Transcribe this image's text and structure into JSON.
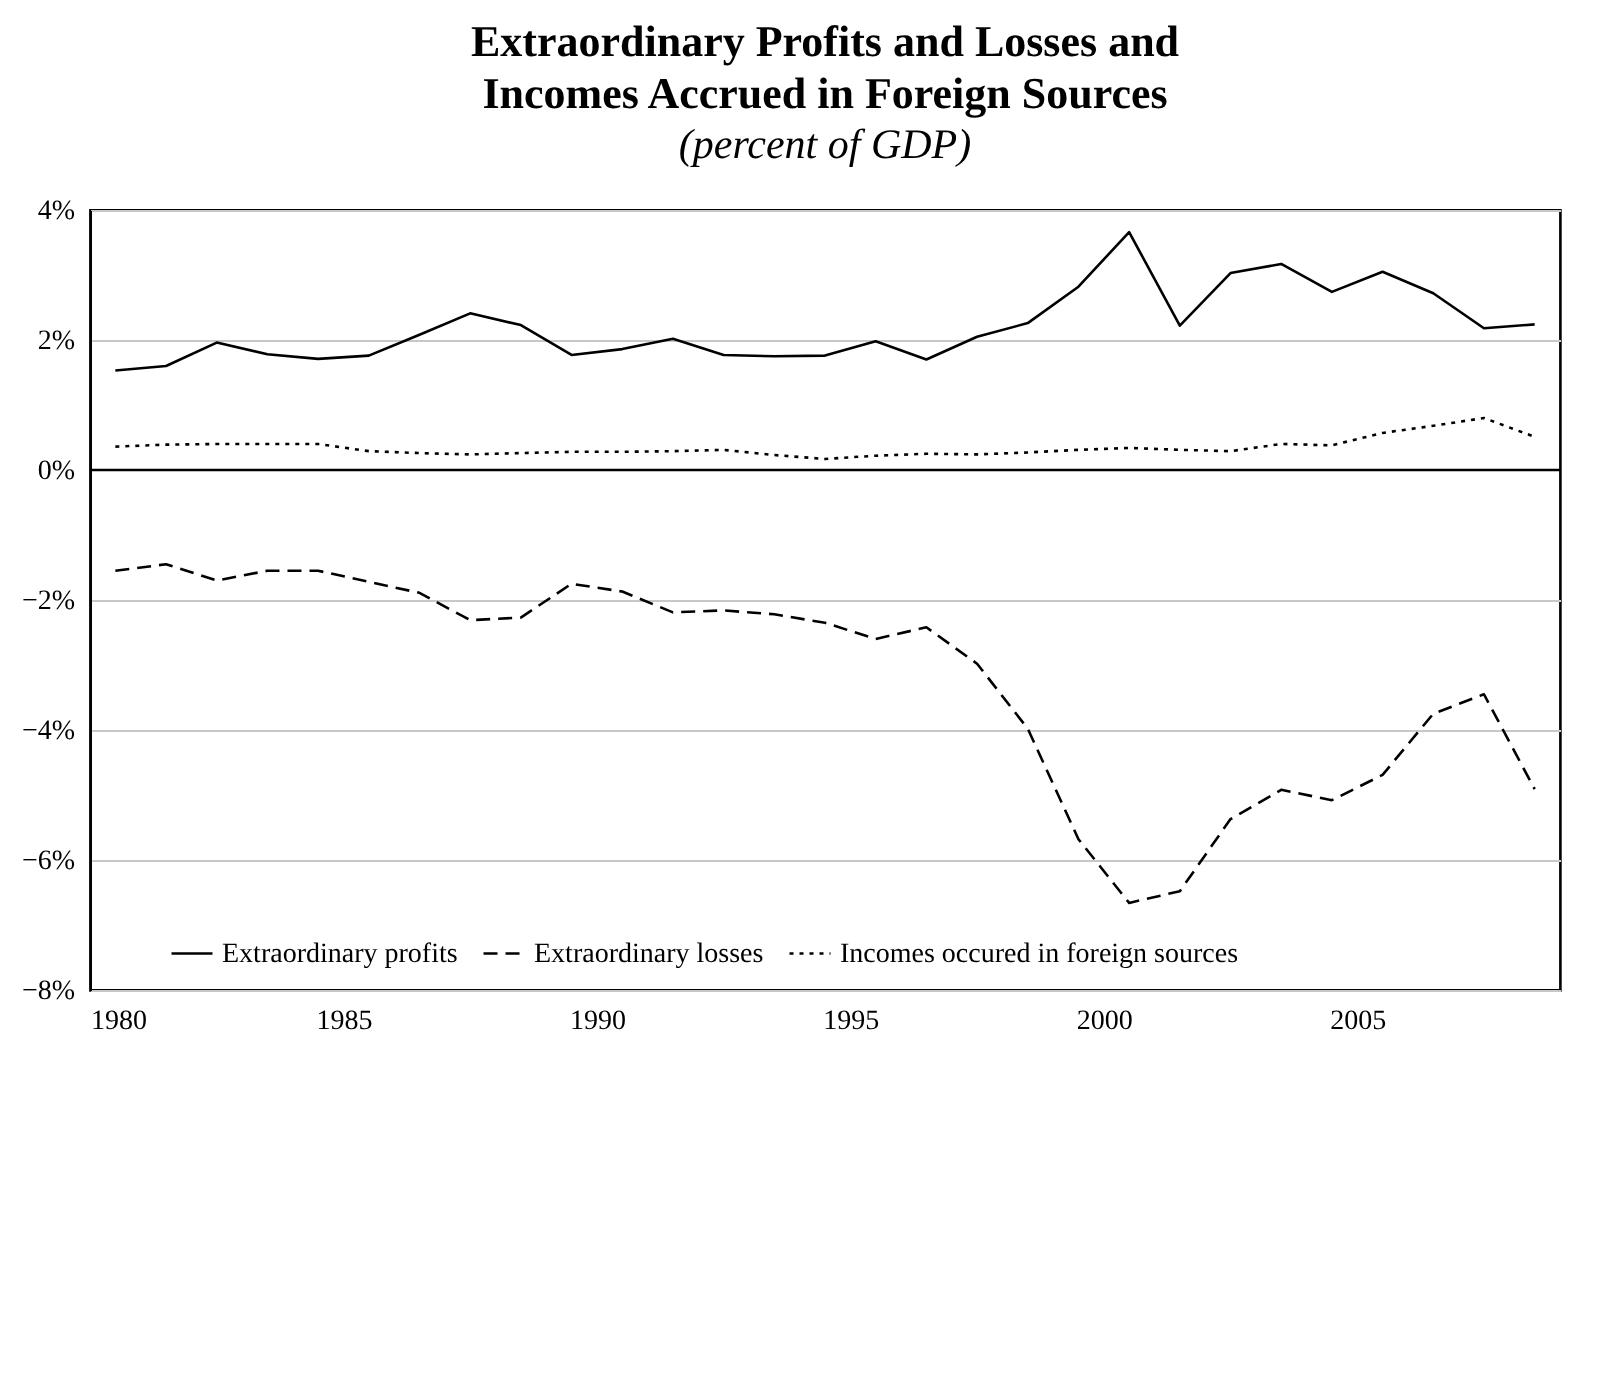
{
  "chart_data": {
    "type": "line",
    "title": "Extraordinary Profits and Losses and Incomes Accrued in Foreign Sources",
    "subtitle": "(percent of GDP)",
    "x": [
      1980,
      1981,
      1982,
      1983,
      1984,
      1985,
      1986,
      1987,
      1988,
      1989,
      1990,
      1991,
      1992,
      1993,
      1994,
      1995,
      1996,
      1997,
      1998,
      1999,
      2000,
      2001,
      2002,
      2003,
      2004,
      2005,
      2006,
      2007,
      2008
    ],
    "series": [
      {
        "name": "Extraordinary profits",
        "color": "#000000",
        "line_style": "solid",
        "values": [
          1.53,
          1.6,
          1.96,
          1.78,
          1.71,
          1.76,
          2.08,
          2.41,
          2.23,
          1.77,
          1.86,
          2.02,
          1.77,
          1.75,
          1.76,
          1.98,
          1.7,
          2.05,
          2.26,
          2.82,
          3.66,
          2.22,
          3.03,
          3.17,
          2.74,
          3.05,
          2.72,
          2.18,
          2.24
        ]
      },
      {
        "name": "Extraordinary losses",
        "color": "#000000",
        "line_style": "dashed",
        "values": [
          -1.55,
          -1.45,
          -1.7,
          -1.55,
          -1.55,
          -1.72,
          -1.89,
          -2.31,
          -2.27,
          -1.75,
          -1.87,
          -2.19,
          -2.16,
          -2.22,
          -2.35,
          -2.6,
          -2.42,
          -2.98,
          -3.98,
          -5.68,
          -6.66,
          -6.48,
          -5.37,
          -4.92,
          -5.08,
          -4.69,
          -3.75,
          -3.45,
          -4.91
        ]
      },
      {
        "name": "Incomes occured in foreign sources",
        "color": "#000000",
        "line_style": "dotted",
        "values": [
          0.36,
          0.39,
          0.4,
          0.4,
          0.4,
          0.29,
          0.26,
          0.24,
          0.26,
          0.28,
          0.28,
          0.29,
          0.31,
          0.23,
          0.17,
          0.22,
          0.25,
          0.24,
          0.27,
          0.31,
          0.34,
          0.31,
          0.29,
          0.4,
          0.38,
          0.57,
          0.68,
          0.8,
          0.51
        ]
      }
    ],
    "xlim": [
      1979.5,
      2008.5
    ],
    "xticks": [
      {
        "value": 1979.5,
        "label": "1980"
      },
      {
        "value": 1984.5,
        "label": "1985"
      },
      {
        "value": 1989.5,
        "label": "1990"
      },
      {
        "value": 1994.5,
        "label": "1995"
      },
      {
        "value": 1999.5,
        "label": "2000"
      },
      {
        "value": 2004.5,
        "label": "2005"
      }
    ],
    "ylim": [
      -8,
      4
    ],
    "yticks": [
      {
        "value": -8,
        "label": "−8%"
      },
      {
        "value": -6,
        "label": "−6%"
      },
      {
        "value": -4,
        "label": "−4%"
      },
      {
        "value": -2,
        "label": "−2%"
      },
      {
        "value": 0,
        "label": "0%"
      },
      {
        "value": 2,
        "label": "2%"
      },
      {
        "value": 4,
        "label": "4%"
      }
    ],
    "ref_lines": [
      {
        "axis": "y",
        "value": 0,
        "color": "#000000"
      }
    ],
    "grid": "y",
    "legend": "bottom",
    "marker": "none"
  }
}
